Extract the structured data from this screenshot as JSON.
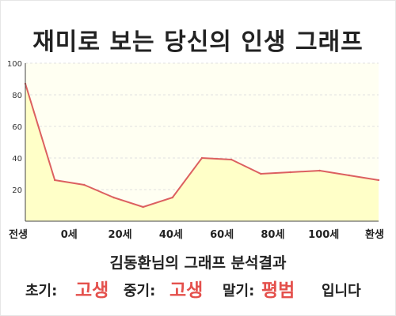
{
  "title": "재미로 보는 당신의 인생 그래프",
  "chart_data": {
    "type": "area",
    "x_ticks": [
      "전생",
      "0세",
      "20세",
      "40세",
      "60세",
      "80세",
      "100세",
      "환생"
    ],
    "y_ticks": [
      20,
      40,
      60,
      80,
      100
    ],
    "ylim": [
      0,
      100
    ],
    "points": [
      87,
      26,
      23,
      15,
      9,
      15,
      40,
      39,
      30,
      31,
      32,
      29,
      26
    ],
    "grid": true,
    "line_color": "#dc6060",
    "fill_color": "#ffffc8"
  },
  "result": {
    "heading": "김동환님의 그래프 분석결과",
    "early_label": "초기:",
    "early_value": "고생",
    "middle_label": "중기:",
    "middle_value": "고생",
    "late_label": "말기:",
    "late_value": "평범",
    "ending": "입니다",
    "value_color": "#e4504c"
  }
}
